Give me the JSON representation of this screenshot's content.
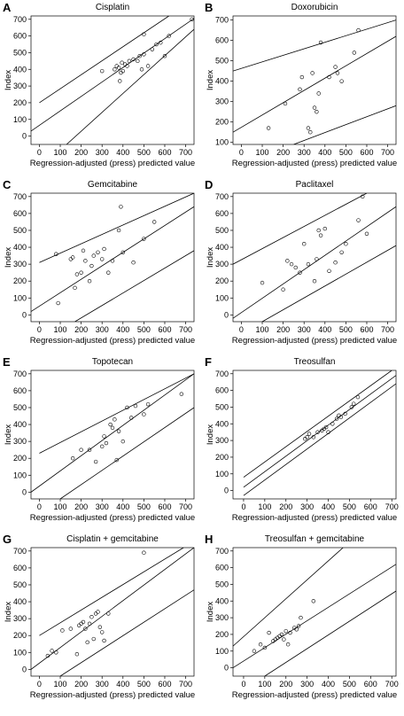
{
  "chart_data": [
    {
      "type": "scatter",
      "panel": "A",
      "title": "Cisplatin",
      "xlabel": "Regression-adjusted (press) predicted value",
      "ylabel": "Index",
      "x": [
        300,
        360,
        370,
        380,
        385,
        390,
        395,
        400,
        410,
        420,
        430,
        450,
        470,
        480,
        490,
        500,
        500,
        520,
        540,
        560,
        580,
        600,
        620,
        730
      ],
      "y": [
        390,
        400,
        420,
        410,
        330,
        380,
        440,
        390,
        430,
        420,
        450,
        460,
        450,
        480,
        400,
        610,
        490,
        420,
        520,
        550,
        560,
        480,
        600,
        700
      ],
      "xlim": [
        -40,
        740
      ],
      "ylim": [
        -50,
        720
      ],
      "xticks": [
        0,
        100,
        200,
        300,
        400,
        500,
        600,
        700
      ],
      "yticks": [
        0,
        100,
        200,
        300,
        400,
        500,
        600,
        700
      ],
      "lines": [
        {
          "x": [
            -40,
            740
          ],
          "y": [
            30,
            705
          ]
        },
        {
          "x": [
            0,
            620
          ],
          "y": [
            200,
            720
          ]
        },
        {
          "x": [
            130,
            740
          ],
          "y": [
            -50,
            640
          ]
        }
      ]
    },
    {
      "type": "scatter",
      "panel": "B",
      "title": "Doxorubicin",
      "xlabel": "Regression-adjusted (press) predicted value",
      "ylabel": "Index",
      "x": [
        130,
        210,
        280,
        290,
        320,
        330,
        340,
        350,
        360,
        370,
        380,
        420,
        450,
        460,
        480,
        540,
        560
      ],
      "y": [
        170,
        290,
        360,
        420,
        170,
        150,
        440,
        270,
        250,
        340,
        590,
        420,
        470,
        440,
        400,
        540,
        650
      ],
      "xlim": [
        -40,
        740
      ],
      "ylim": [
        90,
        720
      ],
      "xticks": [
        0,
        100,
        200,
        300,
        400,
        500,
        600,
        700
      ],
      "yticks": [
        100,
        200,
        300,
        400,
        500,
        600,
        700
      ],
      "lines": [
        {
          "x": [
            -40,
            740
          ],
          "y": [
            450,
            700
          ]
        },
        {
          "x": [
            -40,
            740
          ],
          "y": [
            150,
            620
          ]
        },
        {
          "x": [
            250,
            740
          ],
          "y": [
            90,
            280
          ]
        }
      ]
    },
    {
      "type": "scatter",
      "panel": "C",
      "title": "Gemcitabine",
      "xlabel": "Regression-adjusted (press) predicted value",
      "ylabel": "Index",
      "x": [
        80,
        90,
        150,
        160,
        170,
        180,
        200,
        210,
        220,
        240,
        250,
        260,
        280,
        300,
        310,
        330,
        350,
        380,
        390,
        400,
        450,
        500,
        550
      ],
      "y": [
        360,
        70,
        330,
        340,
        160,
        240,
        250,
        380,
        320,
        200,
        290,
        350,
        370,
        330,
        390,
        250,
        320,
        500,
        640,
        370,
        310,
        450,
        550
      ],
      "xlim": [
        -40,
        740
      ],
      "ylim": [
        -40,
        720
      ],
      "xticks": [
        0,
        100,
        200,
        300,
        400,
        500,
        600,
        700
      ],
      "yticks": [
        0,
        100,
        200,
        300,
        400,
        500,
        600,
        700
      ],
      "lines": [
        {
          "x": [
            0,
            740
          ],
          "y": [
            310,
            720
          ]
        },
        {
          "x": [
            -40,
            740
          ],
          "y": [
            20,
            640
          ]
        },
        {
          "x": [
            170,
            740
          ],
          "y": [
            -40,
            380
          ]
        }
      ]
    },
    {
      "type": "scatter",
      "panel": "D",
      "title": "Paclitaxel",
      "xlabel": "Regression-adjusted (press) predicted value",
      "ylabel": "Index",
      "x": [
        100,
        200,
        220,
        240,
        260,
        280,
        300,
        320,
        350,
        360,
        370,
        380,
        400,
        420,
        450,
        480,
        500,
        560,
        580,
        600
      ],
      "y": [
        190,
        150,
        320,
        300,
        280,
        250,
        420,
        300,
        200,
        330,
        500,
        470,
        510,
        260,
        310,
        370,
        420,
        560,
        700,
        480
      ],
      "xlim": [
        -40,
        740
      ],
      "ylim": [
        -40,
        720
      ],
      "xticks": [
        0,
        100,
        200,
        300,
        400,
        500,
        600,
        700
      ],
      "yticks": [
        0,
        100,
        200,
        300,
        400,
        500,
        600,
        700
      ],
      "lines": [
        {
          "x": [
            -40,
            600
          ],
          "y": [
            300,
            720
          ]
        },
        {
          "x": [
            -40,
            740
          ],
          "y": [
            -20,
            640
          ]
        },
        {
          "x": [
            100,
            740
          ],
          "y": [
            -40,
            410
          ]
        }
      ]
    },
    {
      "type": "scatter",
      "panel": "E",
      "title": "Topotecan",
      "xlabel": "Regression-adjusted (press) predicted value",
      "ylabel": "Index",
      "x": [
        160,
        200,
        240,
        270,
        300,
        310,
        320,
        340,
        350,
        360,
        370,
        380,
        400,
        420,
        440,
        460,
        500,
        520,
        680
      ],
      "y": [
        200,
        250,
        250,
        180,
        270,
        330,
        290,
        400,
        380,
        430,
        190,
        360,
        300,
        500,
        440,
        510,
        460,
        520,
        580
      ],
      "xlim": [
        -40,
        740
      ],
      "ylim": [
        -40,
        720
      ],
      "xticks": [
        0,
        100,
        200,
        300,
        400,
        500,
        600,
        700
      ],
      "yticks": [
        0,
        100,
        200,
        300,
        400,
        500,
        600,
        700
      ],
      "lines": [
        {
          "x": [
            0,
            740
          ],
          "y": [
            230,
            700
          ]
        },
        {
          "x": [
            -40,
            740
          ],
          "y": [
            0,
            700
          ]
        },
        {
          "x": [
            100,
            740
          ],
          "y": [
            -40,
            500
          ]
        }
      ]
    },
    {
      "type": "scatter",
      "panel": "F",
      "title": "Treosulfan",
      "xlabel": "Regression-adjusted (press) predicted value",
      "ylabel": "Index",
      "x": [
        290,
        300,
        310,
        330,
        350,
        370,
        380,
        390,
        400,
        420,
        440,
        450,
        460,
        480,
        510,
        520,
        540
      ],
      "y": [
        310,
        320,
        340,
        320,
        350,
        360,
        370,
        380,
        350,
        400,
        430,
        450,
        440,
        460,
        500,
        520,
        560
      ],
      "xlim": [
        -50,
        720
      ],
      "ylim": [
        -50,
        720
      ],
      "xticks": [
        0,
        100,
        200,
        300,
        400,
        500,
        600,
        700
      ],
      "yticks": [
        0,
        100,
        200,
        300,
        400,
        500,
        600,
        700
      ],
      "lines": [
        {
          "x": [
            0,
            700
          ],
          "y": [
            80,
            720
          ]
        },
        {
          "x": [
            0,
            720
          ],
          "y": [
            20,
            690
          ]
        },
        {
          "x": [
            0,
            720
          ],
          "y": [
            -30,
            640
          ]
        }
      ]
    },
    {
      "type": "scatter",
      "panel": "G",
      "title": "Cisplatin + gemcitabine",
      "xlabel": "Regression-adjusted (press) predicted value",
      "ylabel": "Index",
      "x": [
        40,
        60,
        80,
        110,
        150,
        180,
        190,
        200,
        210,
        220,
        230,
        240,
        250,
        260,
        270,
        280,
        290,
        300,
        310,
        330,
        500
      ],
      "y": [
        80,
        110,
        100,
        230,
        240,
        90,
        260,
        270,
        280,
        240,
        160,
        270,
        310,
        180,
        330,
        340,
        250,
        220,
        170,
        330,
        690
      ],
      "xlim": [
        -40,
        740
      ],
      "ylim": [
        -40,
        720
      ],
      "xticks": [
        0,
        100,
        200,
        300,
        400,
        500,
        600,
        700
      ],
      "yticks": [
        0,
        100,
        200,
        300,
        400,
        500,
        600,
        700
      ],
      "lines": [
        {
          "x": [
            0,
            690
          ],
          "y": [
            200,
            720
          ]
        },
        {
          "x": [
            -40,
            740
          ],
          "y": [
            0,
            720
          ]
        },
        {
          "x": [
            100,
            740
          ],
          "y": [
            -40,
            470
          ]
        }
      ]
    },
    {
      "type": "scatter",
      "panel": "H",
      "title": "Treosulfan + gemcitabine",
      "xlabel": "Regression-adjusted (press) predicted value",
      "ylabel": "Index",
      "x": [
        50,
        80,
        100,
        120,
        140,
        150,
        160,
        170,
        180,
        190,
        200,
        210,
        220,
        240,
        250,
        260,
        270,
        330
      ],
      "y": [
        100,
        140,
        120,
        210,
        160,
        170,
        180,
        190,
        200,
        170,
        220,
        140,
        210,
        240,
        230,
        250,
        300,
        400
      ],
      "xlim": [
        -50,
        720
      ],
      "ylim": [
        -50,
        720
      ],
      "xticks": [
        0,
        100,
        200,
        300,
        400,
        500,
        600,
        700
      ],
      "yticks": [
        0,
        100,
        200,
        300,
        400,
        500,
        600,
        700
      ],
      "lines": [
        {
          "x": [
            -50,
            470
          ],
          "y": [
            130,
            720
          ]
        },
        {
          "x": [
            -50,
            720
          ],
          "y": [
            0,
            620
          ]
        },
        {
          "x": [
            100,
            720
          ],
          "y": [
            -50,
            460
          ]
        }
      ]
    }
  ]
}
